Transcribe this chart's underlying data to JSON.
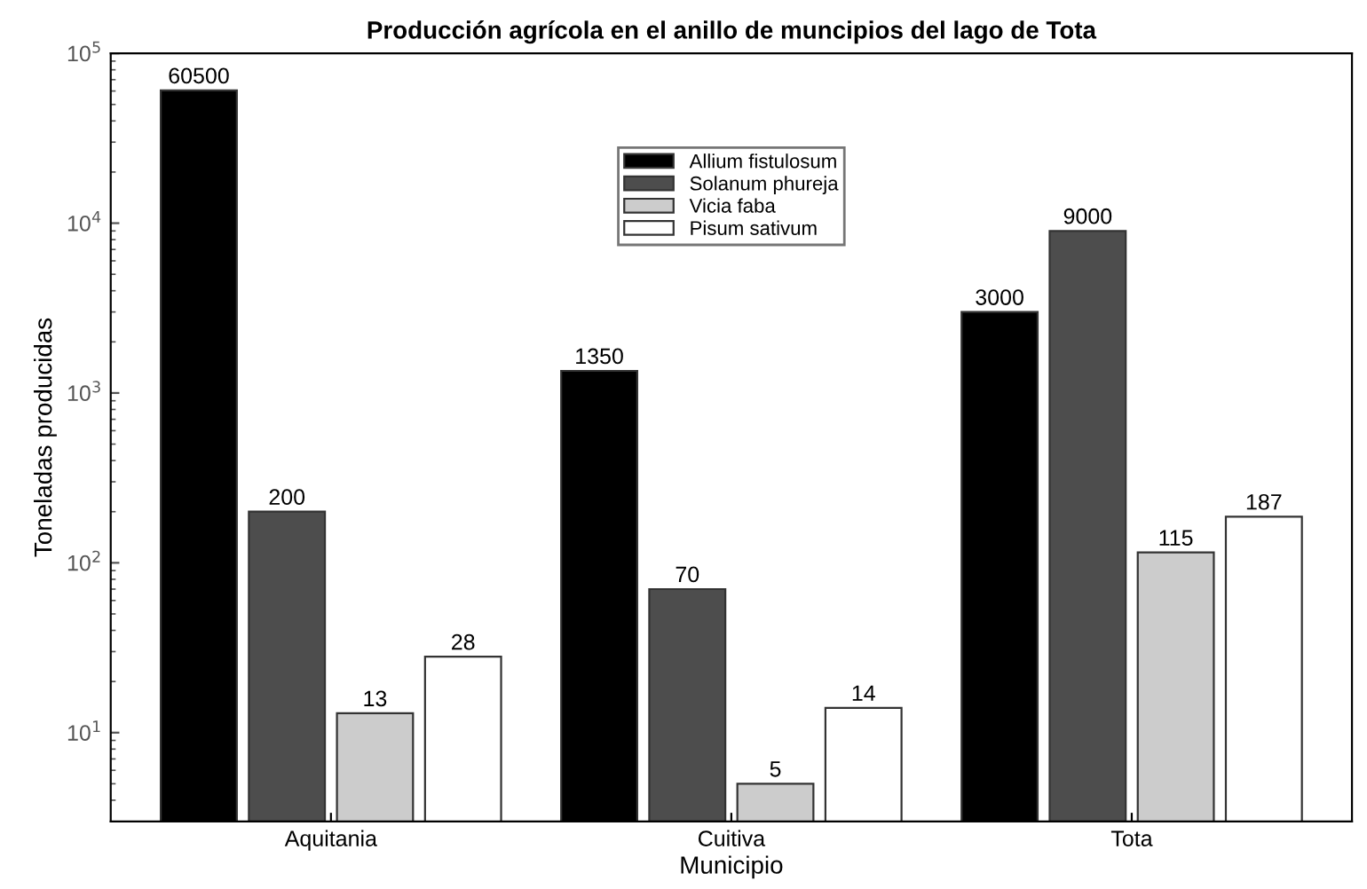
{
  "chart_data": {
    "type": "bar",
    "title": "Producción agrícola en el anillo de muncipios del lago de Tota",
    "xlabel": "Municipio",
    "ylabel": "Toneladas producidas",
    "categories": [
      "Aquitania",
      "Cuitiva",
      "Tota"
    ],
    "series": [
      {
        "name": "Allium fistulosum",
        "color": "#000000",
        "values": [
          60500,
          1350,
          3000
        ]
      },
      {
        "name": "Solanum phureja",
        "color": "#4d4d4d",
        "values": [
          200,
          70,
          9000
        ]
      },
      {
        "name": "Vicia faba",
        "color": "#cccccc",
        "values": [
          13,
          5,
          115
        ]
      },
      {
        "name": "Pisum sativum",
        "color": "#ffffff",
        "values": [
          28,
          14,
          187
        ]
      }
    ],
    "log": true,
    "ylim": [
      3,
      100000
    ],
    "yticks": [
      {
        "value": 10,
        "label": "10$^{1}$"
      },
      {
        "value": 100,
        "label": "10$^{2}$"
      },
      {
        "value": 1000,
        "label": "10$^{3}$"
      },
      {
        "value": 10000,
        "label": "10$^{4}$"
      },
      {
        "value": 100000,
        "label": "10$^{5}$"
      }
    ],
    "data_labels": true,
    "grid": false,
    "legend": "top"
  }
}
